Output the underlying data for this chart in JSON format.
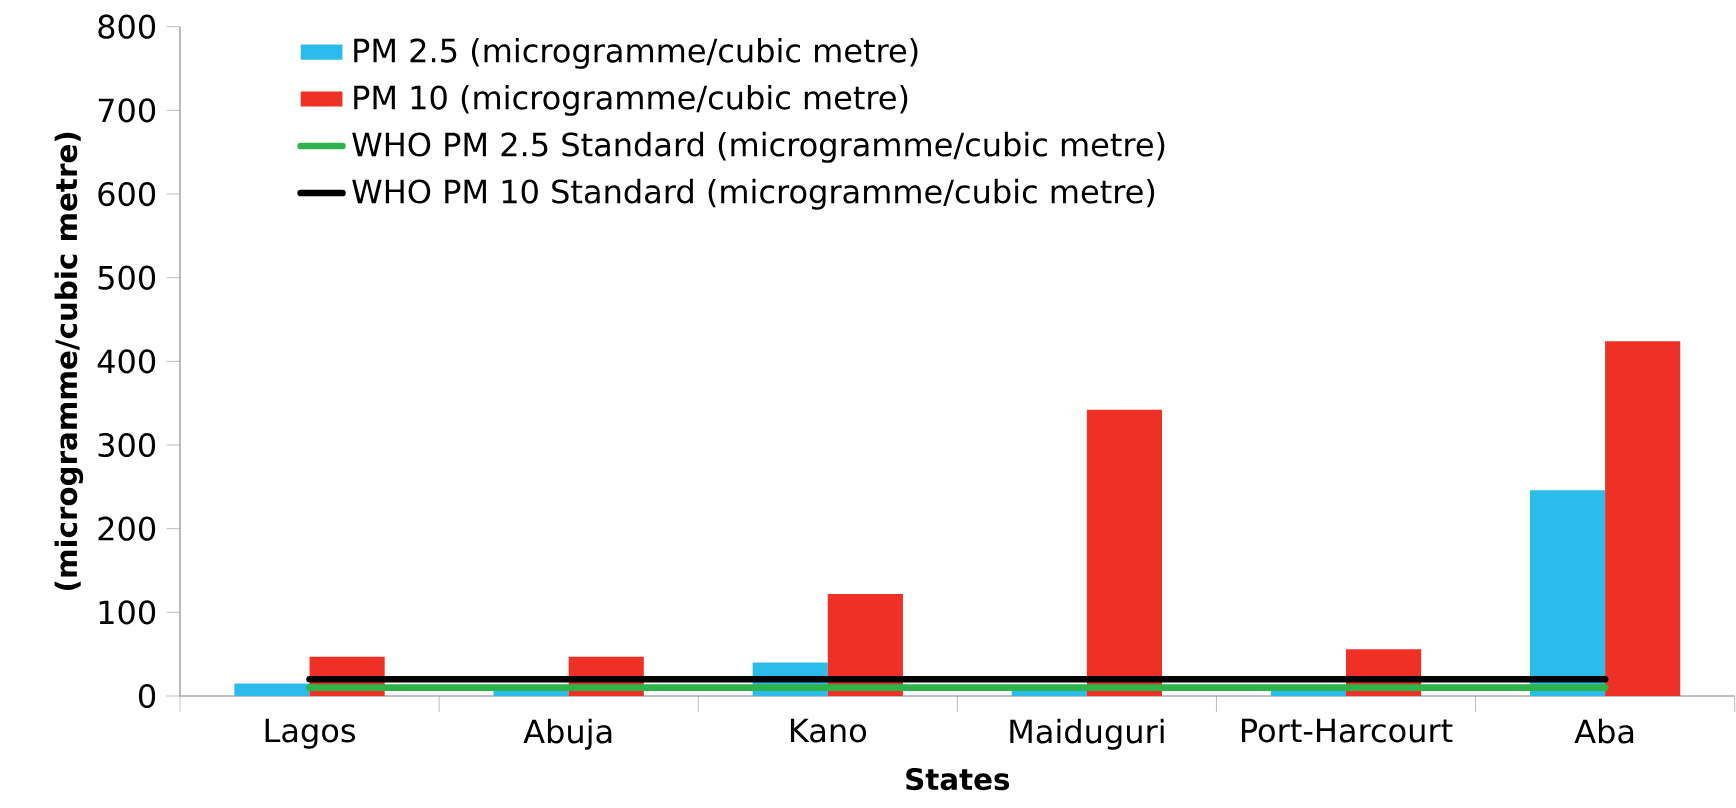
{
  "chart_data": {
    "type": "bar",
    "xlabel": "States",
    "ylabel": "(microgramme/cubic metre)",
    "categories": [
      "Lagos",
      "Abuja",
      "Kano",
      "Maiduguri",
      "Port-Harcourt",
      "Aba"
    ],
    "series": [
      {
        "name": "PM 2.5 (microgramme/cubic metre)",
        "color": "#2bbcec",
        "values": [
          15,
          8,
          40,
          8,
          8,
          246
        ]
      },
      {
        "name": "PM 10 (microgramme/cubic metre)",
        "color": "#ee3124",
        "values": [
          47,
          47,
          122,
          342,
          56,
          424
        ]
      },
      {
        "name": "WHO PM 2.5 Standard (microgramme/cubic metre)",
        "type": "line",
        "color": "#2db34a",
        "values": [
          10,
          10,
          10,
          10,
          10,
          10
        ]
      },
      {
        "name": "WHO PM 10 Standard (microgramme/cubic metre)",
        "type": "line",
        "color": "#000000",
        "values": [
          20,
          20,
          20,
          20,
          20,
          20
        ]
      }
    ],
    "ylim": [
      0,
      800
    ],
    "yticks": [
      0,
      100,
      200,
      300,
      400,
      500,
      600,
      700,
      800
    ],
    "legend": "top left",
    "grid": false,
    "marker": "none"
  }
}
